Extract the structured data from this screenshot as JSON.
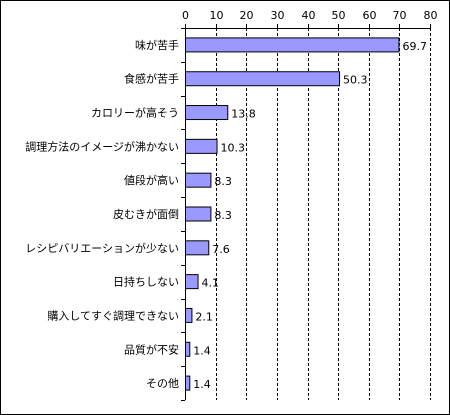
{
  "chart_data": {
    "type": "bar",
    "orientation": "horizontal",
    "categories": [
      "味が苦手",
      "食感が苦手",
      "カロリーが高そう",
      "調理方法のイメージが沸かない",
      "値段が高い",
      "皮むきが面倒",
      "レシピバリエーションが少ない",
      "日持ちしない",
      "購入してすぐ調理できない",
      "品質が不安",
      "その他"
    ],
    "values": [
      69.7,
      50.3,
      13.8,
      10.3,
      8.3,
      8.3,
      7.6,
      4.1,
      2.1,
      1.4,
      1.4
    ],
    "value_labels": [
      "69.7",
      "50.3",
      "13.8",
      "10.3",
      "8.3",
      "8.3",
      "7.6",
      "4.1",
      "2.1",
      "1.4",
      "1.4"
    ],
    "xlim": [
      0,
      80
    ],
    "xticks": [
      0,
      10,
      20,
      30,
      40,
      50,
      60,
      70,
      80
    ],
    "x_axis_position": "top",
    "grid": "vertical dashed",
    "bar_color": "#9999ff",
    "title": "",
    "xlabel": "",
    "ylabel": ""
  }
}
